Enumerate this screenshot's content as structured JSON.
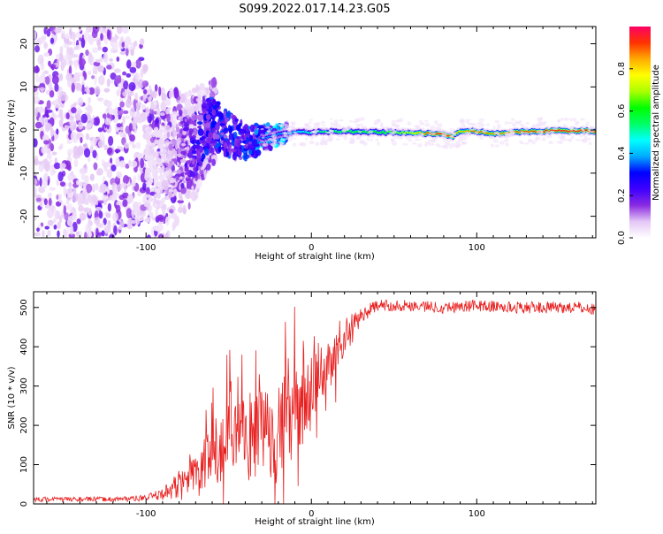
{
  "title": "S099.2022.017.14.23.G05",
  "chart_data": [
    {
      "type": "heatmap",
      "xlabel": "Height of straight line (km)",
      "ylabel": "Frequency (Hz)",
      "xlim": [
        -168,
        172
      ],
      "ylim": [
        -25,
        24
      ],
      "xticks": [
        -100,
        0,
        100
      ],
      "yticks": [
        -20,
        -10,
        0,
        10,
        20
      ],
      "colorbar": {
        "label": "Normalized spectral amplitude",
        "ticks": [
          0.0,
          0.2,
          0.4,
          0.6,
          0.8
        ],
        "range": [
          0,
          1
        ],
        "colors": [
          "#ffffff",
          "#e4c6f5",
          "#8a2be2",
          "#3f00ff",
          "#0000ff",
          "#00aaff",
          "#00ffff",
          "#00ff66",
          "#00ff00",
          "#aaff00",
          "#ffff00",
          "#ffaa00",
          "#ff3300",
          "#ff0066"
        ]
      },
      "ridge": {
        "description_points_x": [
          -90,
          -80,
          -70,
          -60,
          -50,
          -40,
          -30,
          -20,
          -10,
          0,
          20,
          40,
          60,
          70,
          80,
          85,
          90,
          100,
          110,
          130,
          150,
          172
        ],
        "description_points_y": [
          -9,
          -6,
          -3,
          2,
          -1,
          -3,
          -2,
          -1,
          -0.5,
          -0.5,
          -0.3,
          -0.5,
          -0.6,
          -0.8,
          -1,
          -1.5,
          -0.5,
          -0.3,
          -0.8,
          -0.3,
          -0.2,
          -0.2
        ],
        "amplitude": [
          0.05,
          0.15,
          0.25,
          0.3,
          0.3,
          0.3,
          0.35,
          0.4,
          0.45,
          0.5,
          0.6,
          0.6,
          0.7,
          0.9,
          0.95,
          0.9,
          0.8,
          0.9,
          0.85,
          0.9,
          0.95,
          0.95
        ]
      }
    },
    {
      "type": "line",
      "xlabel": "Height of straight line (km)",
      "ylabel": "SNR (10 * v/v)",
      "xlim": [
        -168,
        172
      ],
      "ylim": [
        0,
        540
      ],
      "xticks": [
        -100,
        0,
        100
      ],
      "yticks": [
        0,
        100,
        200,
        300,
        400,
        500
      ],
      "series": [
        {
          "color": "#e82020",
          "envelope_x": [
            -168,
            -120,
            -100,
            -90,
            -80,
            -70,
            -60,
            -50,
            -40,
            -30,
            -20,
            -10,
            0,
            10,
            20,
            30,
            40,
            60,
            80,
            100,
            120,
            140,
            160,
            172
          ],
          "envelope_mean": [
            12,
            12,
            15,
            25,
            50,
            80,
            120,
            150,
            170,
            185,
            200,
            230,
            280,
            350,
            420,
            480,
            505,
            505,
            500,
            505,
            500,
            500,
            500,
            495
          ],
          "envelope_spread": [
            6,
            6,
            8,
            15,
            40,
            70,
            130,
            150,
            160,
            170,
            190,
            170,
            140,
            100,
            60,
            20,
            15,
            15,
            15,
            15,
            15,
            15,
            15,
            15
          ]
        }
      ]
    }
  ]
}
